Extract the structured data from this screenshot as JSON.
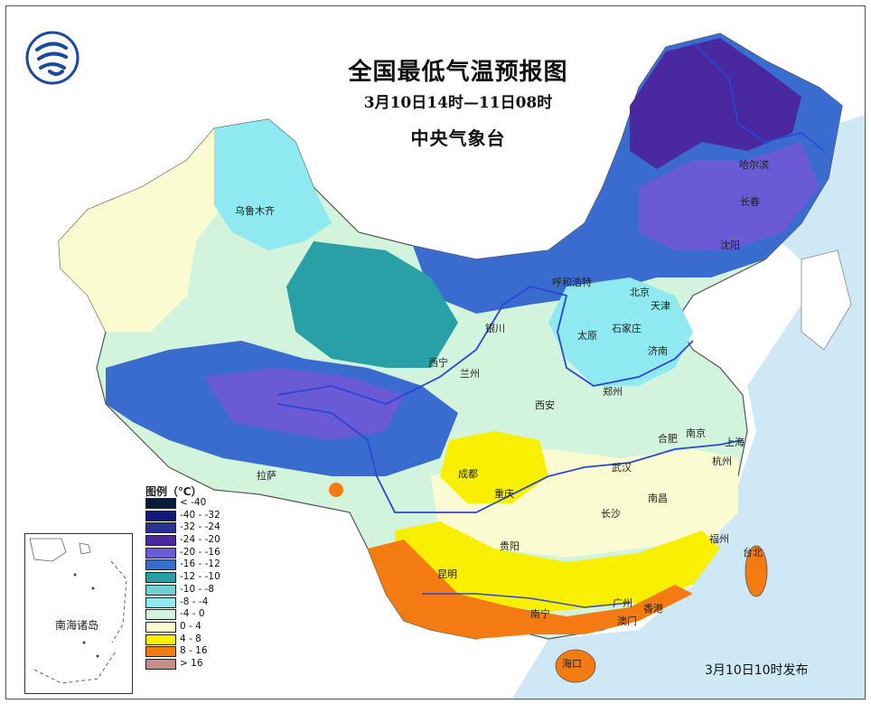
{
  "map": {
    "title": "全国最低气温预报图",
    "subtitle": "3月10日14时—11日08时",
    "agency": "中央气象台",
    "issued": "3月10日10时发布",
    "inset_label": "南海诸岛",
    "legend": {
      "title": "图例（℃）",
      "items": [
        {
          "label": "< -40",
          "color": "#0a1a3c"
        },
        {
          "label": "-40 - -32",
          "color": "#101a7a"
        },
        {
          "label": "-32 - -24",
          "color": "#2a3296"
        },
        {
          "label": "-24 - -20",
          "color": "#4a28a0"
        },
        {
          "label": "-20 - -16",
          "color": "#6a5ad6"
        },
        {
          "label": "-16 - -12",
          "color": "#3a6ccf"
        },
        {
          "label": "-12 - -10",
          "color": "#28a0a6"
        },
        {
          "label": "-10 - -8",
          "color": "#6fd0d6"
        },
        {
          "label": "-8 - -4",
          "color": "#8eeaf0"
        },
        {
          "label": "-4 - 0",
          "color": "#d2f4dc"
        },
        {
          "label": "0 - 4",
          "color": "#fbfbd2"
        },
        {
          "label": "4 - 8",
          "color": "#f8f000"
        },
        {
          "label": "8 - 16",
          "color": "#f47a12"
        },
        {
          "label": "> 16",
          "color": "#c88a8a"
        }
      ]
    },
    "cities": [
      "乌鲁木齐",
      "哈尔滨",
      "长春",
      "沈阳",
      "呼和浩特",
      "北京",
      "天津",
      "石家庄",
      "太原",
      "济南",
      "银川",
      "西宁",
      "兰州",
      "西安",
      "郑州",
      "合肥",
      "南京",
      "上海",
      "杭州",
      "武汉",
      "成都",
      "重庆",
      "拉萨",
      "长沙",
      "南昌",
      "贵阳",
      "昆明",
      "福州",
      "台北",
      "南宁",
      "广州",
      "香港",
      "澳门",
      "海口"
    ]
  }
}
